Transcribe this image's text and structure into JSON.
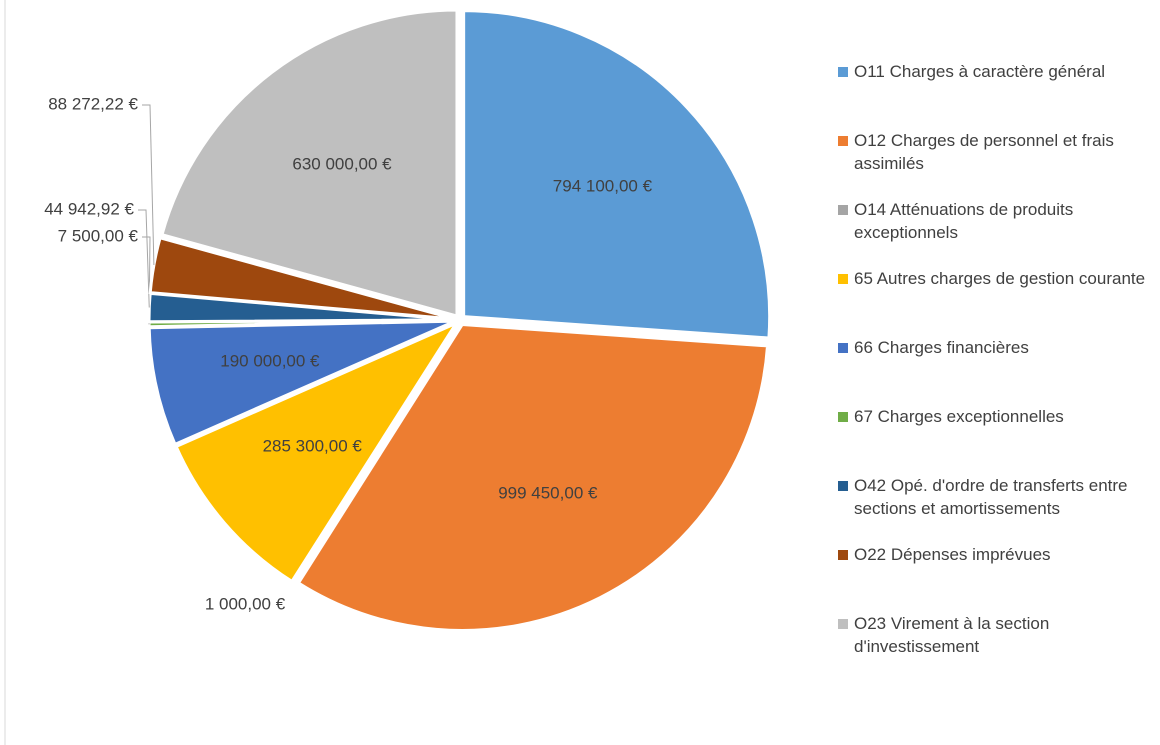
{
  "chart_data": {
    "type": "pie",
    "categories": [
      "O11 Charges à caractère général",
      "O12 Charges de personnel et frais assimilés",
      "O14 Atténuations de produits exceptionnels",
      "65 Autres charges de gestion courante",
      "66 Charges financières",
      "67 Charges exceptionnelles",
      "O42 Opé. d'ordre de transferts entre sections et amortissements",
      "O22 Dépenses imprévues",
      "O23 Virement à la section d'investissement"
    ],
    "values": [
      794100,
      999450,
      1000,
      285300,
      190000,
      7500,
      44942.92,
      88272.22,
      630000
    ],
    "value_labels": [
      "794 100,00 €",
      "999 450,00 €",
      "1 000,00 €",
      "285 300,00 €",
      "190 000,00 €",
      "7 500,00 €",
      "44 942,92 €",
      "88 272,22 €",
      "630 000,00 €"
    ],
    "colors": [
      "#5b9bd5",
      "#ed7d31",
      "#a5a5a5",
      "#ffc000",
      "#4472c4",
      "#70ad47",
      "#255e91",
      "#9e480e",
      "#bfbfbf"
    ],
    "legend": "right"
  }
}
